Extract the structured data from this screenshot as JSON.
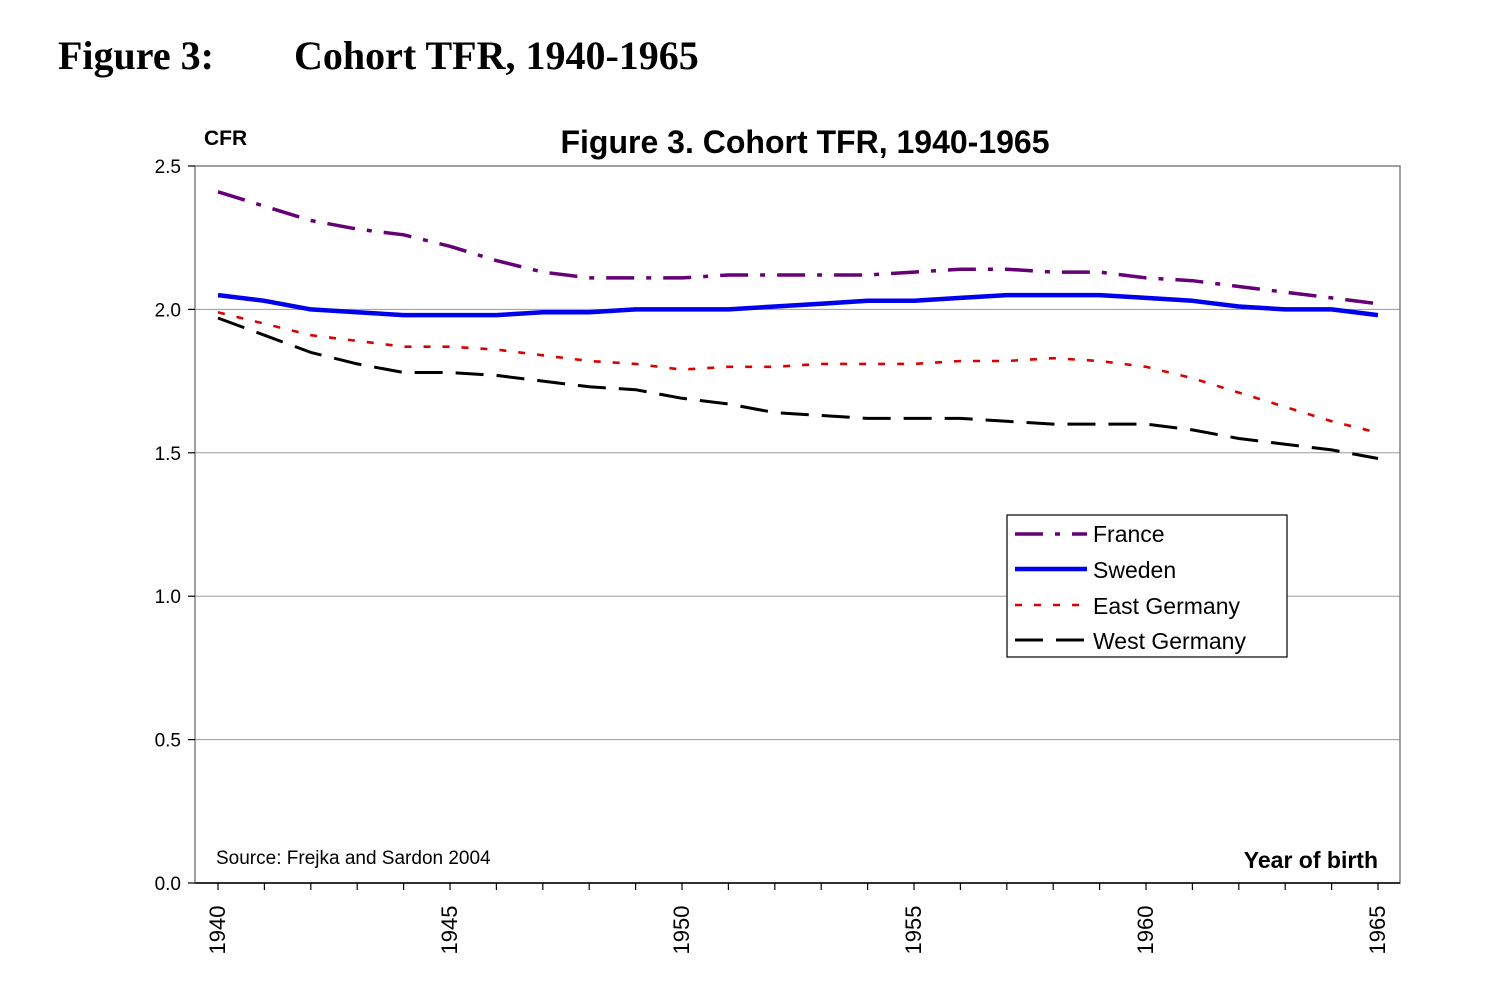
{
  "page_heading": {
    "figure_label": "Figure 3:",
    "title": "Cohort TFR, 1940-1965"
  },
  "chart_data": {
    "type": "line",
    "title": "Figure 3. Cohort TFR, 1940-1965",
    "ylabel": "CFR",
    "xlabel": "Year of birth",
    "source_note": "Source: Frejka and Sardon 2004",
    "xlim": [
      1940,
      1965
    ],
    "ylim": [
      0.0,
      2.5
    ],
    "y_ticks": [
      "0.0",
      "0.5",
      "1.0",
      "1.5",
      "2.0",
      "2.5"
    ],
    "x_tick_labels": [
      "1940",
      "1945",
      "1950",
      "1955",
      "1960",
      "1965"
    ],
    "grid": "horizontal",
    "legend_position": "center-right",
    "x": [
      1940,
      1941,
      1942,
      1943,
      1944,
      1945,
      1946,
      1947,
      1948,
      1949,
      1950,
      1951,
      1952,
      1953,
      1954,
      1955,
      1956,
      1957,
      1958,
      1959,
      1960,
      1961,
      1962,
      1963,
      1964,
      1965
    ],
    "series": [
      {
        "name": "France",
        "color": "#660077",
        "style": "dash-dot",
        "values": [
          2.41,
          2.36,
          2.31,
          2.28,
          2.26,
          2.22,
          2.17,
          2.13,
          2.11,
          2.11,
          2.11,
          2.12,
          2.12,
          2.12,
          2.12,
          2.13,
          2.14,
          2.14,
          2.13,
          2.13,
          2.11,
          2.1,
          2.08,
          2.06,
          2.04,
          2.02
        ]
      },
      {
        "name": "Sweden",
        "color": "#0000ee",
        "style": "solid",
        "values": [
          2.05,
          2.03,
          2.0,
          1.99,
          1.98,
          1.98,
          1.98,
          1.99,
          1.99,
          2.0,
          2.0,
          2.0,
          2.01,
          2.02,
          2.03,
          2.03,
          2.04,
          2.05,
          2.05,
          2.05,
          2.04,
          2.03,
          2.01,
          2.0,
          2.0,
          1.98
        ]
      },
      {
        "name": "East Germany",
        "color": "#dd0000",
        "style": "dotted",
        "values": [
          1.99,
          1.95,
          1.91,
          1.89,
          1.87,
          1.87,
          1.86,
          1.84,
          1.82,
          1.81,
          1.79,
          1.8,
          1.8,
          1.81,
          1.81,
          1.81,
          1.82,
          1.82,
          1.83,
          1.82,
          1.8,
          1.76,
          1.71,
          1.66,
          1.61,
          1.57
        ]
      },
      {
        "name": "West Germany",
        "color": "#000000",
        "style": "dashed",
        "values": [
          1.97,
          1.91,
          1.85,
          1.81,
          1.78,
          1.78,
          1.77,
          1.75,
          1.73,
          1.72,
          1.69,
          1.67,
          1.64,
          1.63,
          1.62,
          1.62,
          1.62,
          1.61,
          1.6,
          1.6,
          1.6,
          1.58,
          1.55,
          1.53,
          1.51,
          1.48
        ]
      }
    ]
  }
}
